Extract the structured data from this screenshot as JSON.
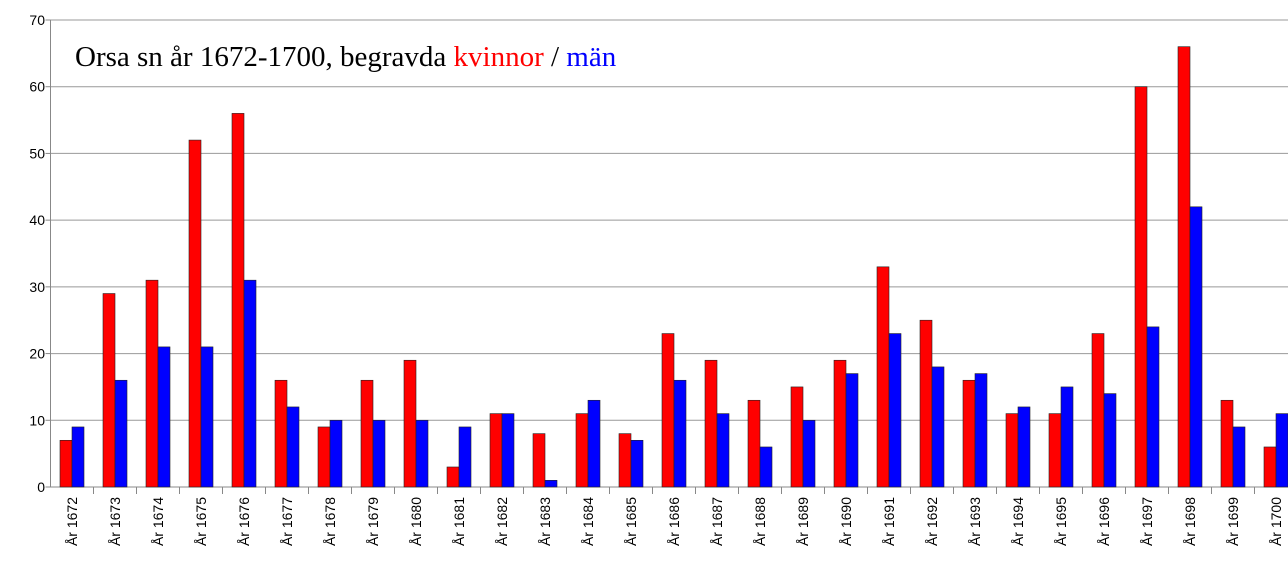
{
  "chart_data": {
    "type": "bar",
    "title": "Orsa sn år 1672-1700, begravda",
    "title_separator": "/",
    "categories": [
      "År 1672",
      "År 1673",
      "År 1674",
      "År 1675",
      "År 1676",
      "År 1677",
      "År 1678",
      "År 1679",
      "År 1680",
      "År 1681",
      "År 1682",
      "År 1683",
      "År 1684",
      "År 1685",
      "År 1686",
      "År 1687",
      "År 1688",
      "År 1689",
      "År 1690",
      "År 1691",
      "År 1692",
      "År 1693",
      "År 1694",
      "År 1695",
      "År 1696",
      "År 1697",
      "År 1698",
      "År 1699",
      "År 1700"
    ],
    "series": [
      {
        "name": "kvinnor",
        "color": "#ff0000",
        "values": [
          7,
          29,
          31,
          52,
          56,
          16,
          9,
          16,
          19,
          3,
          11,
          8,
          11,
          8,
          23,
          19,
          13,
          15,
          19,
          33,
          25,
          16,
          11,
          11,
          23,
          60,
          66,
          13,
          6
        ]
      },
      {
        "name": "män",
        "color": "#0000ff",
        "values": [
          9,
          16,
          21,
          21,
          31,
          12,
          10,
          10,
          10,
          9,
          11,
          1,
          13,
          7,
          16,
          11,
          6,
          10,
          17,
          23,
          18,
          17,
          12,
          15,
          14,
          24,
          42,
          9,
          11
        ]
      }
    ],
    "ylim": [
      0,
      70
    ],
    "yticks": [
      0,
      10,
      20,
      30,
      40,
      50,
      60,
      70
    ],
    "grid": true
  }
}
